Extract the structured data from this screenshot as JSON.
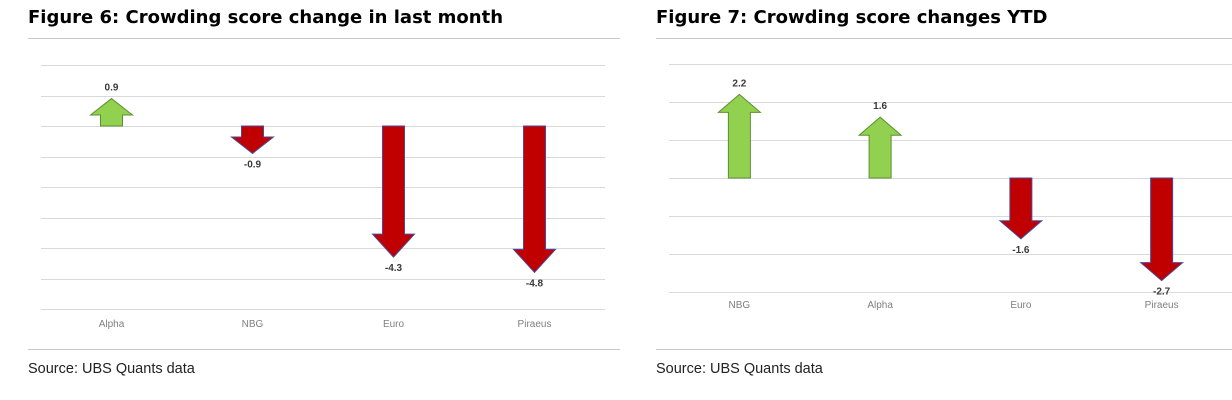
{
  "colors": {
    "up": "#92d050",
    "up_stroke": "#5e8f2e",
    "down": "#c00000",
    "down_stroke": "#4a4a9a",
    "grid": "#d9d9d9"
  },
  "chart_data": [
    {
      "type": "bar",
      "marker": "arrow",
      "title": "Figure 6: Crowding score change in last month",
      "source": "Source: UBS Quants data",
      "categories": [
        "Alpha",
        "NBG",
        "Euro",
        "Piraeus"
      ],
      "values": [
        0.9,
        -0.9,
        -4.3,
        -4.8
      ],
      "data_labels": [
        "0.9",
        "-0.9",
        "-4.3",
        "-4.8"
      ],
      "ylim": [
        -6.0,
        2.0
      ],
      "gridline_step": 1.0,
      "grid": true,
      "legend": "none"
    },
    {
      "type": "bar",
      "marker": "arrow",
      "title": "Figure 7: Crowding score changes YTD",
      "source": "Source: UBS Quants data",
      "categories": [
        "NBG",
        "Alpha",
        "Euro",
        "Piraeus"
      ],
      "values": [
        2.2,
        1.6,
        -1.6,
        -2.7
      ],
      "data_labels": [
        "2.2",
        "1.6",
        "-1.6",
        "-2.7"
      ],
      "ylim": [
        -3.0,
        3.0
      ],
      "gridline_step": 1.0,
      "grid": true,
      "legend": "none"
    }
  ]
}
